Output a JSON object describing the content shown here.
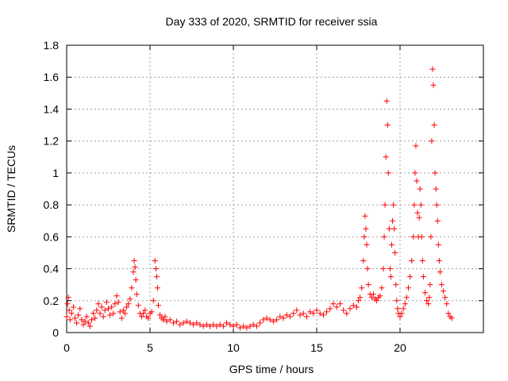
{
  "chart_data": {
    "type": "scatter",
    "title": "Day 333 of 2020, SRMTID for receiver ssia",
    "xlabel": "GPS time / hours",
    "ylabel": "SRMTID / TECUs",
    "xlim": [
      0,
      25
    ],
    "ylim": [
      0,
      1.8
    ],
    "xticks": [
      0,
      5,
      10,
      15,
      20
    ],
    "xtick_labels": [
      "0",
      "5",
      "10",
      "15",
      "20"
    ],
    "yticks": [
      0,
      0.2,
      0.4,
      0.6,
      0.8,
      1,
      1.2,
      1.4,
      1.6,
      1.8
    ],
    "ytick_labels": [
      "0",
      "0.2",
      "0.4",
      "0.6",
      "0.8",
      "1",
      "1.2",
      "1.4",
      "1.6",
      "1.8"
    ],
    "grid": true,
    "marker": "+",
    "marker_color": "#ff0000",
    "series": [
      {
        "name": "SRMTID",
        "points": [
          [
            0.0,
            0.1
          ],
          [
            0.05,
            0.18
          ],
          [
            0.1,
            0.22
          ],
          [
            0.15,
            0.14
          ],
          [
            0.2,
            0.08
          ],
          [
            0.3,
            0.12
          ],
          [
            0.4,
            0.16
          ],
          [
            0.5,
            0.09
          ],
          [
            0.6,
            0.06
          ],
          [
            0.7,
            0.11
          ],
          [
            0.8,
            0.15
          ],
          [
            0.9,
            0.08
          ],
          [
            1.0,
            0.05
          ],
          [
            1.1,
            0.07
          ],
          [
            1.2,
            0.1
          ],
          [
            1.3,
            0.06
          ],
          [
            1.4,
            0.04
          ],
          [
            1.5,
            0.08
          ],
          [
            1.6,
            0.12
          ],
          [
            1.7,
            0.09
          ],
          [
            1.8,
            0.14
          ],
          [
            1.9,
            0.18
          ],
          [
            2.0,
            0.12
          ],
          [
            2.1,
            0.16
          ],
          [
            2.2,
            0.1
          ],
          [
            2.3,
            0.14
          ],
          [
            2.4,
            0.19
          ],
          [
            2.5,
            0.15
          ],
          [
            2.6,
            0.11
          ],
          [
            2.7,
            0.16
          ],
          [
            2.8,
            0.12
          ],
          [
            2.9,
            0.18
          ],
          [
            3.0,
            0.23
          ],
          [
            3.1,
            0.19
          ],
          [
            3.2,
            0.13
          ],
          [
            3.3,
            0.09
          ],
          [
            3.4,
            0.14
          ],
          [
            3.5,
            0.12
          ],
          [
            3.6,
            0.16
          ],
          [
            3.7,
            0.18
          ],
          [
            3.8,
            0.21
          ],
          [
            3.9,
            0.28
          ],
          [
            4.0,
            0.38
          ],
          [
            4.05,
            0.45
          ],
          [
            4.1,
            0.41
          ],
          [
            4.15,
            0.33
          ],
          [
            4.2,
            0.24
          ],
          [
            4.3,
            0.17
          ],
          [
            4.4,
            0.12
          ],
          [
            4.5,
            0.1
          ],
          [
            4.6,
            0.12
          ],
          [
            4.7,
            0.14
          ],
          [
            4.8,
            0.1
          ],
          [
            4.9,
            0.09
          ],
          [
            5.0,
            0.12
          ],
          [
            5.1,
            0.13
          ],
          [
            5.2,
            0.2
          ],
          [
            5.3,
            0.45
          ],
          [
            5.35,
            0.4
          ],
          [
            5.4,
            0.35
          ],
          [
            5.45,
            0.28
          ],
          [
            5.5,
            0.17
          ],
          [
            5.6,
            0.11
          ],
          [
            5.7,
            0.09
          ],
          [
            5.8,
            0.08
          ],
          [
            5.9,
            0.1
          ],
          [
            6.0,
            0.07
          ],
          [
            6.2,
            0.08
          ],
          [
            6.4,
            0.06
          ],
          [
            6.6,
            0.07
          ],
          [
            6.8,
            0.05
          ],
          [
            7.0,
            0.06
          ],
          [
            7.2,
            0.07
          ],
          [
            7.4,
            0.06
          ],
          [
            7.6,
            0.05
          ],
          [
            7.8,
            0.06
          ],
          [
            8.0,
            0.05
          ],
          [
            8.2,
            0.04
          ],
          [
            8.4,
            0.05
          ],
          [
            8.6,
            0.04
          ],
          [
            8.8,
            0.05
          ],
          [
            9.0,
            0.04
          ],
          [
            9.2,
            0.05
          ],
          [
            9.4,
            0.04
          ],
          [
            9.6,
            0.06
          ],
          [
            9.8,
            0.05
          ],
          [
            10.0,
            0.04
          ],
          [
            10.2,
            0.05
          ],
          [
            10.4,
            0.03
          ],
          [
            10.6,
            0.04
          ],
          [
            10.8,
            0.03
          ],
          [
            11.0,
            0.04
          ],
          [
            11.2,
            0.05
          ],
          [
            11.4,
            0.04
          ],
          [
            11.6,
            0.06
          ],
          [
            11.8,
            0.08
          ],
          [
            12.0,
            0.09
          ],
          [
            12.2,
            0.08
          ],
          [
            12.4,
            0.07
          ],
          [
            12.6,
            0.08
          ],
          [
            12.8,
            0.1
          ],
          [
            13.0,
            0.09
          ],
          [
            13.2,
            0.11
          ],
          [
            13.4,
            0.1
          ],
          [
            13.6,
            0.12
          ],
          [
            13.8,
            0.14
          ],
          [
            14.0,
            0.11
          ],
          [
            14.2,
            0.12
          ],
          [
            14.4,
            0.1
          ],
          [
            14.6,
            0.13
          ],
          [
            14.8,
            0.12
          ],
          [
            15.0,
            0.14
          ],
          [
            15.2,
            0.12
          ],
          [
            15.4,
            0.11
          ],
          [
            15.6,
            0.13
          ],
          [
            15.8,
            0.15
          ],
          [
            16.0,
            0.18
          ],
          [
            16.2,
            0.16
          ],
          [
            16.4,
            0.18
          ],
          [
            16.6,
            0.14
          ],
          [
            16.8,
            0.12
          ],
          [
            17.0,
            0.15
          ],
          [
            17.2,
            0.17
          ],
          [
            17.4,
            0.16
          ],
          [
            17.5,
            0.2
          ],
          [
            17.6,
            0.22
          ],
          [
            17.7,
            0.28
          ],
          [
            17.8,
            0.45
          ],
          [
            17.85,
            0.6
          ],
          [
            17.9,
            0.73
          ],
          [
            17.95,
            0.65
          ],
          [
            18.0,
            0.55
          ],
          [
            18.05,
            0.4
          ],
          [
            18.1,
            0.3
          ],
          [
            18.2,
            0.24
          ],
          [
            18.3,
            0.22
          ],
          [
            18.4,
            0.24
          ],
          [
            18.5,
            0.21
          ],
          [
            18.6,
            0.2
          ],
          [
            18.7,
            0.22
          ],
          [
            18.8,
            0.23
          ],
          [
            18.9,
            0.28
          ],
          [
            19.0,
            0.4
          ],
          [
            19.05,
            0.6
          ],
          [
            19.1,
            0.8
          ],
          [
            19.15,
            1.1
          ],
          [
            19.2,
            1.45
          ],
          [
            19.25,
            1.3
          ],
          [
            19.3,
            1.0
          ],
          [
            19.35,
            0.65
          ],
          [
            19.4,
            0.4
          ],
          [
            19.45,
            0.35
          ],
          [
            19.5,
            0.55
          ],
          [
            19.55,
            0.7
          ],
          [
            19.6,
            0.8
          ],
          [
            19.65,
            0.65
          ],
          [
            19.7,
            0.5
          ],
          [
            19.75,
            0.3
          ],
          [
            19.8,
            0.2
          ],
          [
            19.85,
            0.15
          ],
          [
            19.9,
            0.12
          ],
          [
            20.0,
            0.1
          ],
          [
            20.1,
            0.12
          ],
          [
            20.2,
            0.15
          ],
          [
            20.3,
            0.18
          ],
          [
            20.4,
            0.22
          ],
          [
            20.5,
            0.28
          ],
          [
            20.6,
            0.35
          ],
          [
            20.7,
            0.45
          ],
          [
            20.8,
            0.6
          ],
          [
            20.85,
            0.8
          ],
          [
            20.9,
            1.0
          ],
          [
            20.95,
            1.17
          ],
          [
            21.0,
            0.95
          ],
          [
            21.05,
            0.75
          ],
          [
            21.1,
            0.6
          ],
          [
            21.15,
            0.72
          ],
          [
            21.2,
            0.9
          ],
          [
            21.25,
            0.8
          ],
          [
            21.3,
            0.6
          ],
          [
            21.35,
            0.45
          ],
          [
            21.4,
            0.35
          ],
          [
            21.5,
            0.25
          ],
          [
            21.6,
            0.2
          ],
          [
            21.7,
            0.18
          ],
          [
            21.75,
            0.22
          ],
          [
            21.8,
            0.3
          ],
          [
            21.85,
            0.6
          ],
          [
            21.9,
            1.2
          ],
          [
            21.95,
            1.65
          ],
          [
            22.0,
            1.55
          ],
          [
            22.05,
            1.3
          ],
          [
            22.1,
            1.0
          ],
          [
            22.15,
            0.9
          ],
          [
            22.2,
            0.8
          ],
          [
            22.25,
            0.7
          ],
          [
            22.3,
            0.55
          ],
          [
            22.35,
            0.45
          ],
          [
            22.4,
            0.38
          ],
          [
            22.5,
            0.3
          ],
          [
            22.6,
            0.26
          ],
          [
            22.7,
            0.22
          ],
          [
            22.8,
            0.18
          ],
          [
            22.9,
            0.12
          ],
          [
            23.0,
            0.1
          ],
          [
            23.1,
            0.09
          ]
        ]
      }
    ]
  }
}
